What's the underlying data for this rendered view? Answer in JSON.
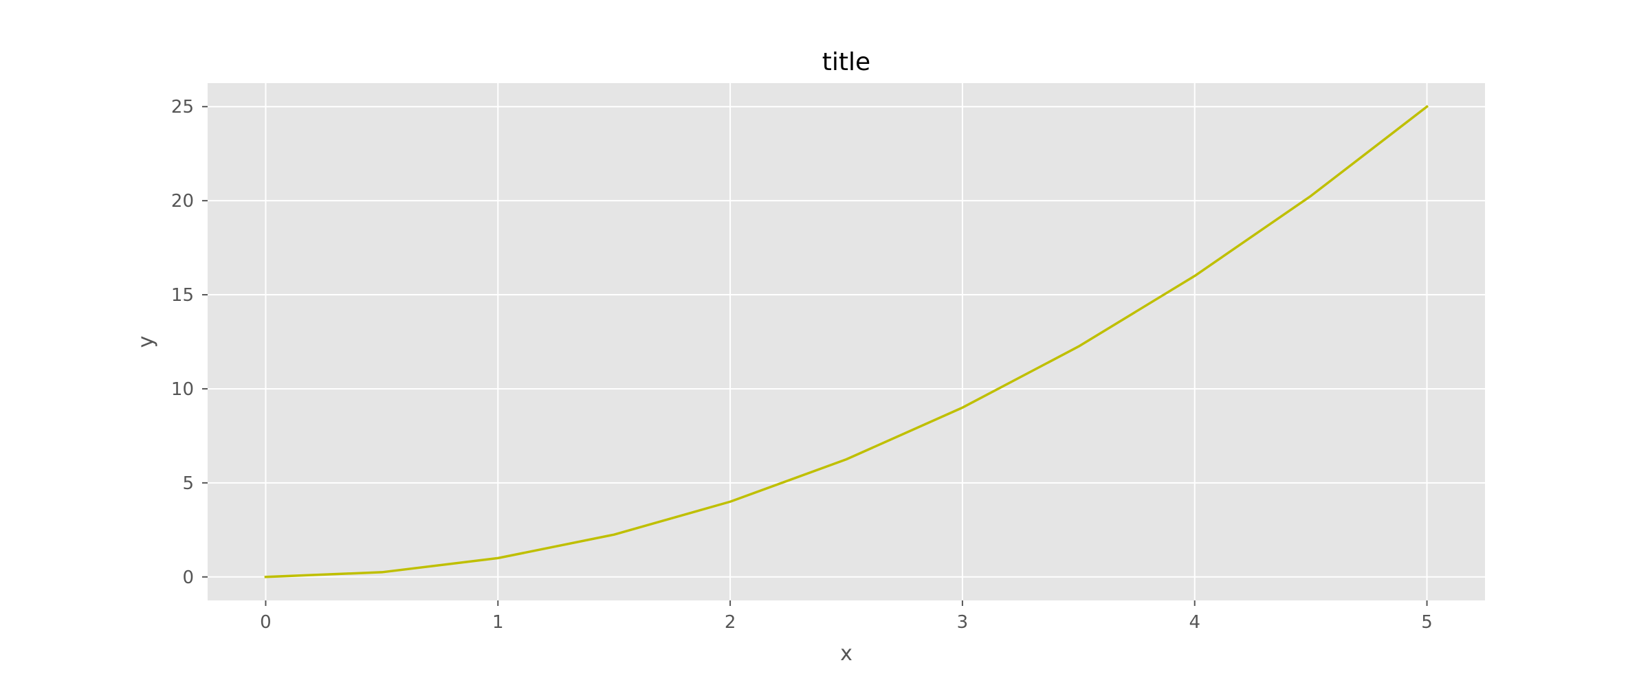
{
  "chart_data": {
    "type": "line",
    "title": "title",
    "xlabel": "x",
    "ylabel": "y",
    "xlim": [
      -0.25,
      5.25
    ],
    "ylim": [
      -1.25,
      26.25
    ],
    "xticks": [
      0,
      1,
      2,
      3,
      4,
      5
    ],
    "yticks": [
      0,
      5,
      10,
      15,
      20,
      25
    ],
    "xtick_labels": [
      "0",
      "1",
      "2",
      "3",
      "4",
      "5"
    ],
    "ytick_labels": [
      "0",
      "5",
      "10",
      "15",
      "20",
      "25"
    ],
    "grid": true,
    "style": "ggplot",
    "colors": {
      "background": "#E5E5E5",
      "grid": "#FFFFFF",
      "line": "#BFBF00",
      "tick_text": "#555555",
      "title_text": "#000000"
    },
    "series": [
      {
        "x": [
          0,
          0.5,
          1,
          1.5,
          2,
          2.5,
          3,
          3.5,
          4,
          4.5,
          5
        ],
        "values": [
          0,
          0.25,
          1,
          2.25,
          4,
          6.25,
          9,
          12.25,
          16,
          20.25,
          25
        ]
      }
    ]
  }
}
